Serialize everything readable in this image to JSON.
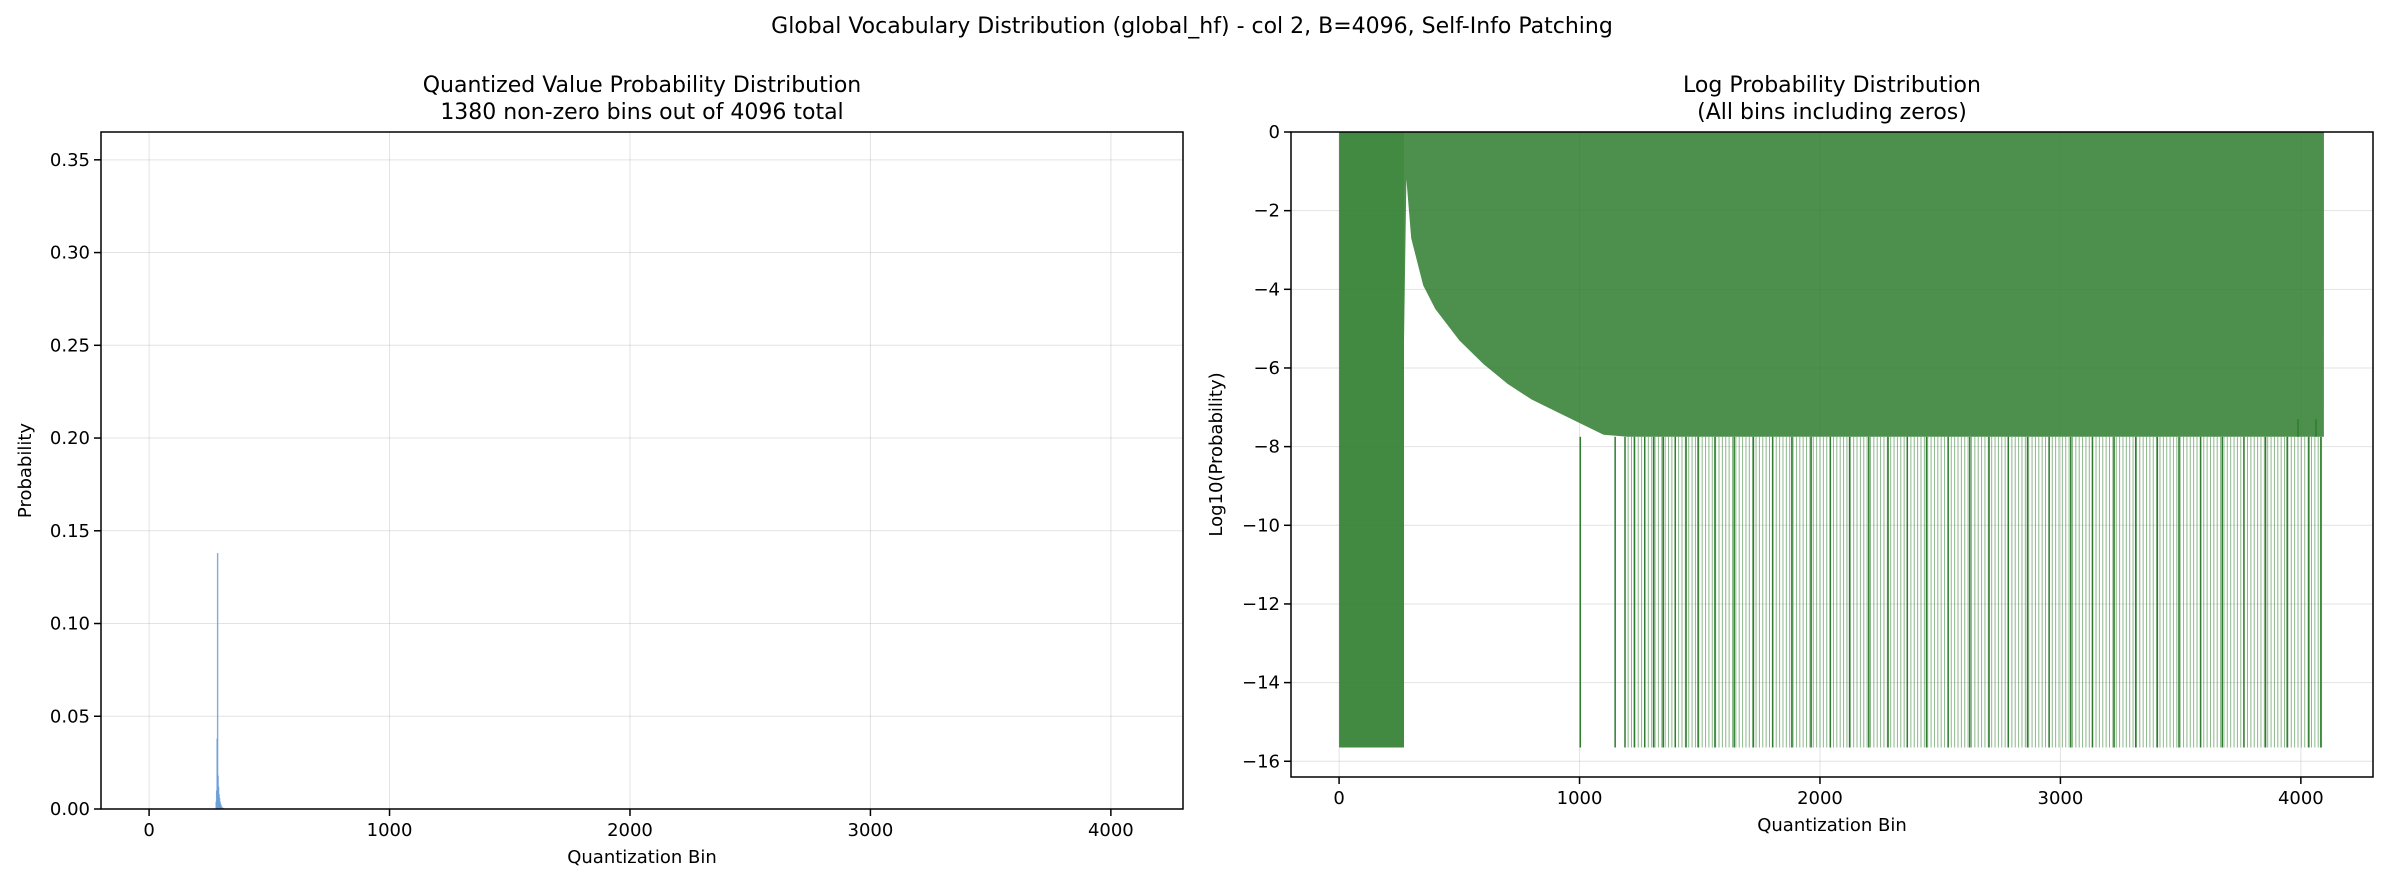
{
  "figure": {
    "suptitle": "Global Vocabulary Distribution (global_hf) - col 2, B=4096, Self-Info Patching"
  },
  "chart_data": [
    {
      "type": "bar",
      "title": "Quantized Value Probability Distribution",
      "subtitle": "1380 non-zero bins out of 4096 total",
      "xlabel": "Quantization Bin",
      "ylabel": "Probability",
      "xlim": [
        -200,
        4300
      ],
      "ylim": [
        0,
        0.365
      ],
      "xticks": [
        0,
        1000,
        2000,
        3000,
        4000
      ],
      "xtick_labels": [
        "0",
        "1000",
        "2000",
        "3000",
        "4000"
      ],
      "yticks": [
        0,
        0.05,
        0.1,
        0.15,
        0.2,
        0.25,
        0.3,
        0.35
      ],
      "ytick_labels": [
        "0.00",
        "0.05",
        "0.10",
        "0.15",
        "0.20",
        "0.25",
        "0.30",
        "0.35"
      ],
      "grid": true,
      "color": "#6a9fd8",
      "x": [
        279,
        281,
        283,
        285,
        287,
        289,
        291,
        293,
        295,
        297,
        300,
        304,
        308
      ],
      "values": [
        0.004,
        0.01,
        0.038,
        0.138,
        0.018,
        0.012,
        0.008,
        0.006,
        0.004,
        0.003,
        0.002,
        0.001,
        0.0006
      ]
    },
    {
      "type": "bar",
      "title": "Log Probability Distribution",
      "subtitle": "(All bins including zeros)",
      "xlabel": "Quantization Bin",
      "ylabel": "Log10(Probability)",
      "xlim": [
        -200,
        4300
      ],
      "ylim": [
        -16.4,
        0
      ],
      "xticks": [
        0,
        1000,
        2000,
        3000,
        4000
      ],
      "xtick_labels": [
        "0",
        "1000",
        "2000",
        "3000",
        "4000"
      ],
      "yticks": [
        0,
        -2,
        -4,
        -6,
        -8,
        -10,
        -12,
        -14,
        -16
      ],
      "ytick_labels": [
        "0",
        "−2",
        "−4",
        "−6",
        "−8",
        "−10",
        "−12",
        "−14",
        "−16"
      ],
      "grid": true,
      "color": "#2e7d2e",
      "zero_bin_log_value": -15.65,
      "nonzero_bin_range": [
        270,
        4096
      ],
      "curve_points": [
        [
          270,
          -5.3
        ],
        [
          280,
          -1.2
        ],
        [
          300,
          -2.7
        ],
        [
          350,
          -3.9
        ],
        [
          400,
          -4.5
        ],
        [
          500,
          -5.3
        ],
        [
          600,
          -5.9
        ],
        [
          700,
          -6.4
        ],
        [
          800,
          -6.8
        ],
        [
          900,
          -7.1
        ],
        [
          1000,
          -7.4
        ],
        [
          1100,
          -7.7
        ],
        [
          1200,
          -7.75
        ],
        [
          4096,
          -7.75
        ]
      ],
      "floor_value": -7.75,
      "deep_dips_x": [
        1000,
        1145,
        1186,
        1225,
        1268,
        1305,
        1345,
        1395,
        1440,
        1490,
        1560,
        1640,
        1720,
        1800,
        1880,
        1960,
        2040,
        2120,
        2200,
        2280,
        2360,
        2440,
        2530,
        2620,
        2700,
        2780,
        2860,
        2950,
        3040,
        3130,
        3220,
        3310,
        3400,
        3490,
        3580,
        3670,
        3760,
        3850,
        3940,
        4030,
        4080
      ],
      "spike_x": [
        3985,
        4060
      ]
    }
  ]
}
